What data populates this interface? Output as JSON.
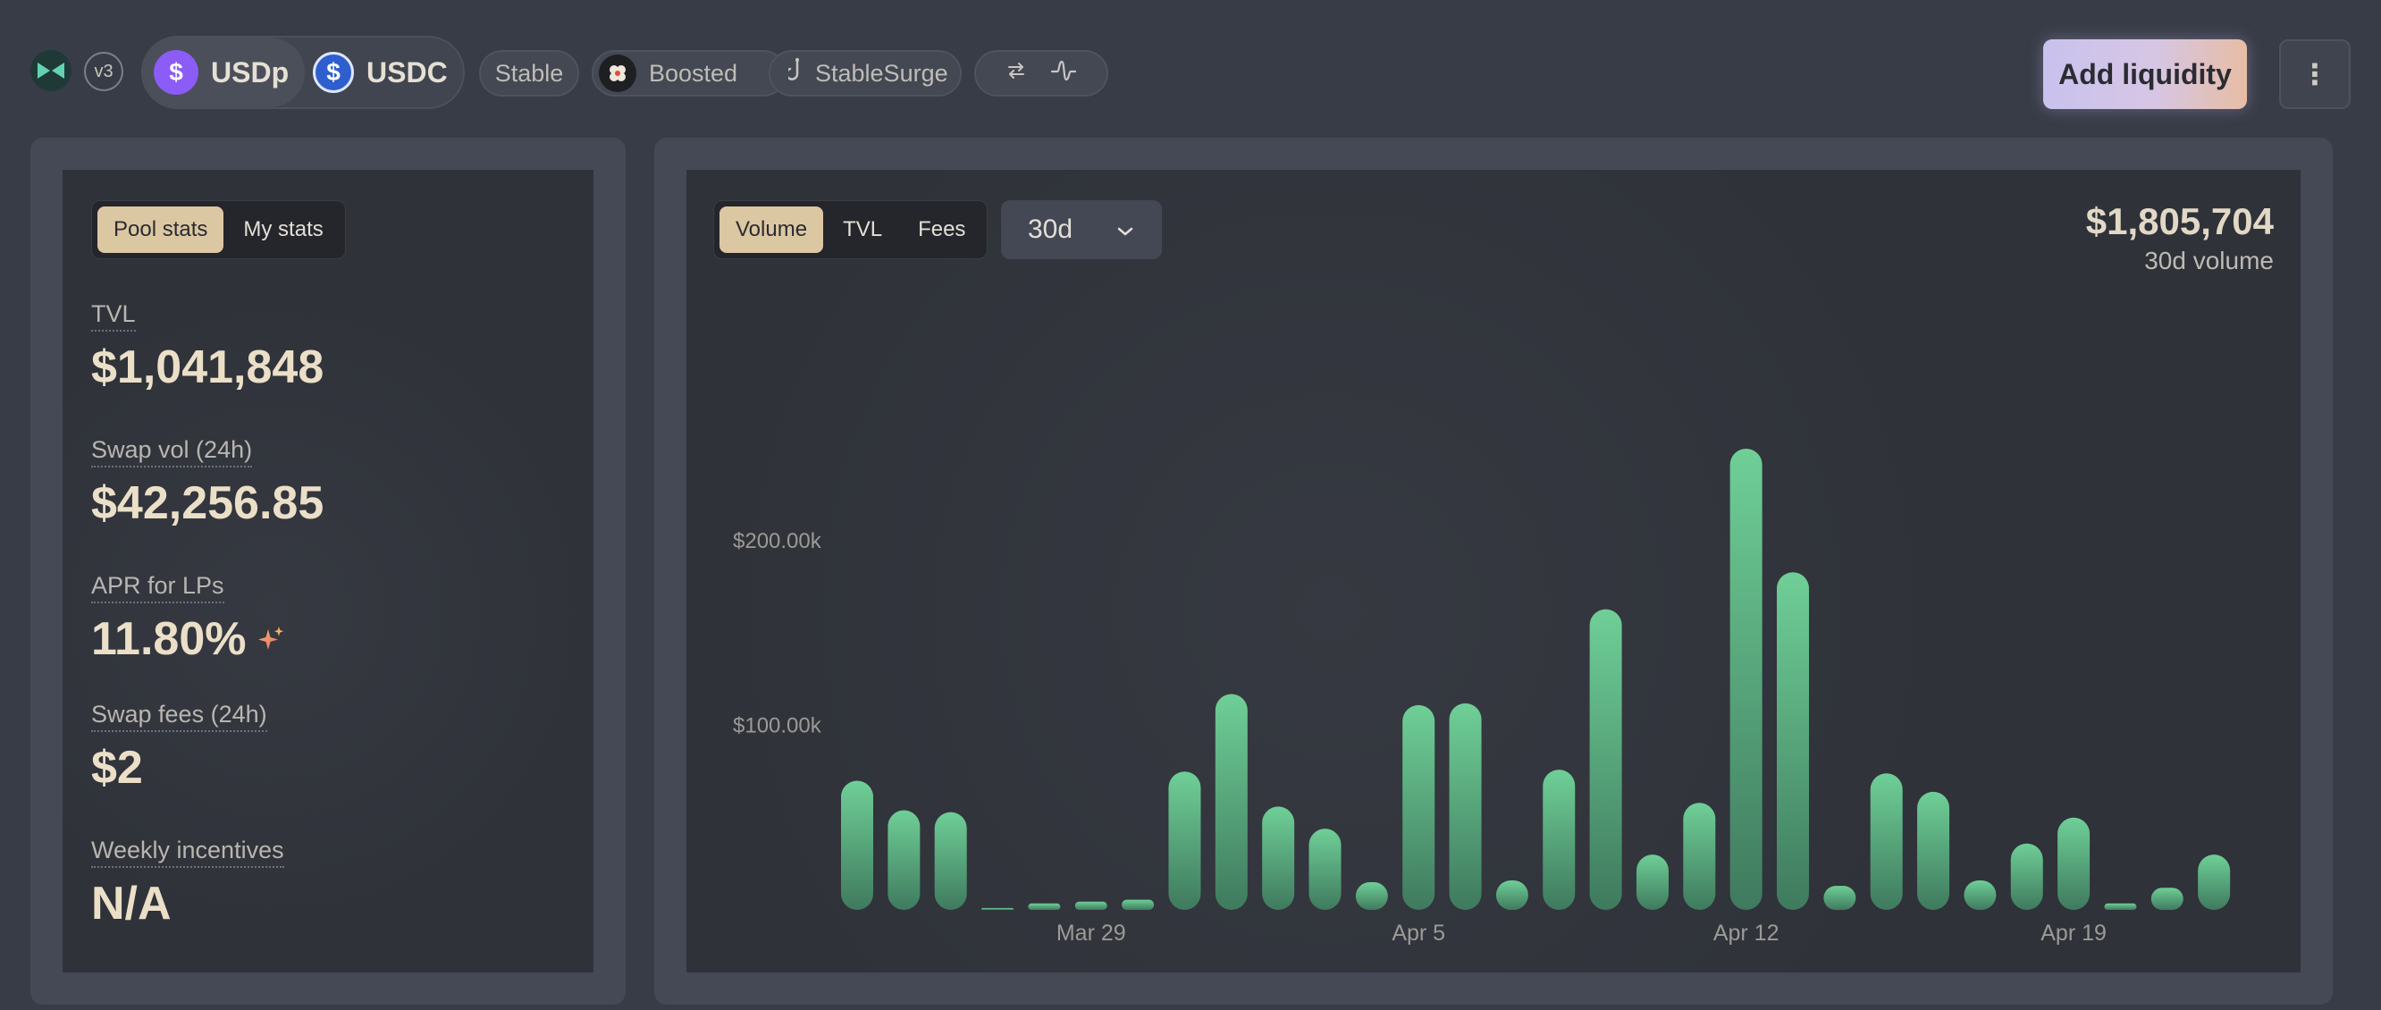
{
  "header": {
    "version_badge": "v3",
    "tokens": [
      {
        "symbol": "USDp",
        "icon": "dollar-icon",
        "color": "#8b5cf6"
      },
      {
        "symbol": "USDC",
        "icon": "dollar-icon",
        "color": "#2f5fce"
      }
    ],
    "tags": {
      "stable": "Stable",
      "boosted": "Boosted",
      "stablesurge": "StableSurge"
    },
    "add_liquidity": "Add liquidity",
    "more_icon": "more-vertical-icon"
  },
  "stats_panel": {
    "tabs": [
      "Pool stats",
      "My stats"
    ],
    "active_tab": "Pool stats",
    "stats": [
      {
        "label": "TVL",
        "value": "$1,041,848"
      },
      {
        "label": "Swap vol (24h)",
        "value": "$42,256.85"
      },
      {
        "label": "APR for LPs",
        "value": "11.80%"
      },
      {
        "label": "Swap fees (24h)",
        "value": "$2"
      },
      {
        "label": "Weekly incentives",
        "value": "N/A"
      }
    ]
  },
  "chart_panel": {
    "tabs": [
      "Volume",
      "TVL",
      "Fees"
    ],
    "active_tab": "Volume",
    "range": "30d",
    "total_value": "$1,805,704",
    "total_label": "30d volume"
  },
  "chart_data": {
    "type": "bar",
    "bar_color": "#6fcf97",
    "ylim": [
      0,
      270000
    ],
    "y_ticks": [
      {
        "value": 100000,
        "label": "$100.00k"
      },
      {
        "value": 200000,
        "label": "$200.00k"
      }
    ],
    "x_tick_labels": [
      {
        "index": 5,
        "label": "Mar 29"
      },
      {
        "index": 12,
        "label": "Apr 5"
      },
      {
        "index": 19,
        "label": "Apr 12"
      },
      {
        "index": 26,
        "label": "Apr 19"
      }
    ],
    "values": [
      70000,
      54000,
      53000,
      1000,
      3500,
      4500,
      5500,
      75000,
      117000,
      56000,
      44000,
      15000,
      111000,
      112000,
      16000,
      76000,
      163000,
      30000,
      58000,
      250000,
      183000,
      13000,
      74000,
      64000,
      16000,
      36000,
      50000,
      3500,
      12000,
      30000
    ],
    "xlabel": "",
    "ylabel": "",
    "grid": false
  }
}
